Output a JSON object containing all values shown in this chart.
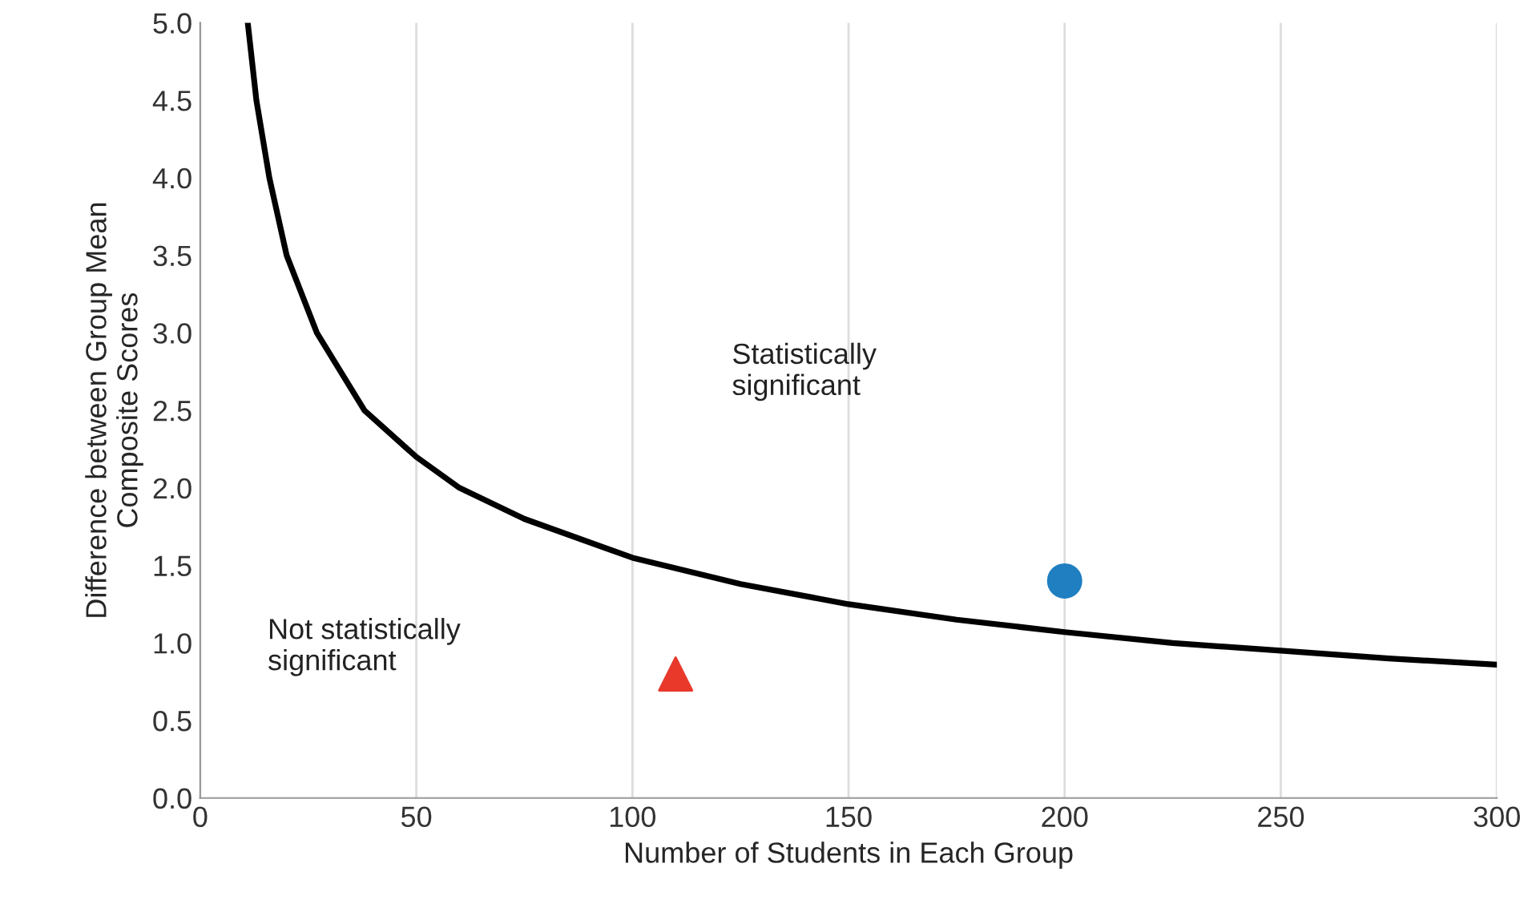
{
  "chart_data": {
    "type": "line",
    "xlabel": "Number of Students in Each Group",
    "ylabel": "Difference between Group Mean\nComposite Scores",
    "xlim": [
      0,
      300
    ],
    "xticks": [
      0,
      50,
      100,
      150,
      200,
      250,
      300
    ],
    "ylim": [
      0,
      5
    ],
    "yticks": [
      {
        "value": 0,
        "label": "0.0"
      },
      {
        "value": 0.5,
        "label": "0.5"
      },
      {
        "value": 1,
        "label": "1.0"
      },
      {
        "value": 1.5,
        "label": "1.5"
      },
      {
        "value": 2,
        "label": "2.0"
      },
      {
        "value": 2.5,
        "label": "2.5"
      },
      {
        "value": 3,
        "label": "3.0"
      },
      {
        "value": 3.5,
        "label": "3.5"
      },
      {
        "value": 4,
        "label": "4.0"
      },
      {
        "value": 4.5,
        "label": "4.5"
      },
      {
        "value": 5,
        "label": "5.0"
      }
    ],
    "grid": "x",
    "legend": false,
    "series": [
      {
        "color": "#000000",
        "marker": "none",
        "line_style": "solid",
        "x": [
          11,
          13,
          16,
          20,
          27,
          38,
          50,
          60,
          75,
          100,
          125,
          150,
          175,
          200,
          225,
          250,
          275,
          300
        ],
        "values": [
          5.0,
          4.5,
          4.0,
          3.5,
          3.0,
          2.5,
          2.2,
          2.0,
          1.8,
          1.55,
          1.38,
          1.25,
          1.15,
          1.07,
          1.0,
          0.95,
          0.9,
          0.86
        ]
      },
      {
        "type": "scatter",
        "color": "#e8392b",
        "marker": "triangle",
        "x": [
          110
        ],
        "values": [
          0.8
        ]
      },
      {
        "type": "scatter",
        "color": "#1f7fc1",
        "marker": "circle",
        "x": [
          200
        ],
        "values": [
          1.4
        ]
      }
    ],
    "annotations": [
      "Statistically\nsignificant",
      "Not statistically\nsignificant"
    ]
  }
}
